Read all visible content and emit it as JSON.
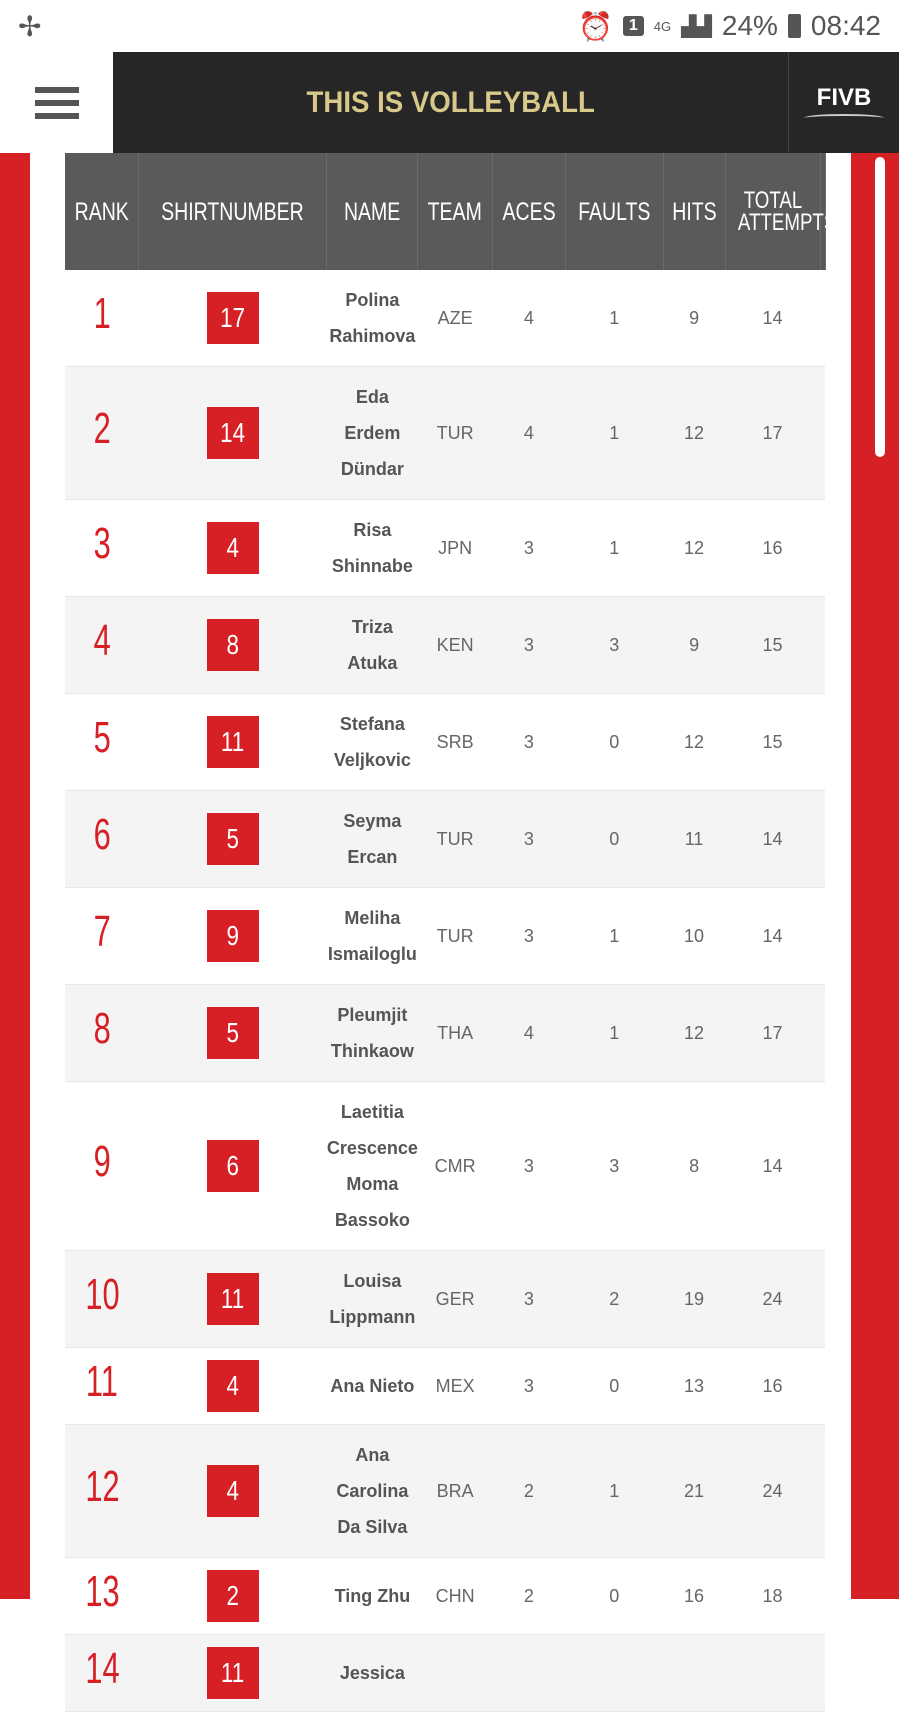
{
  "status_bar": {
    "sim": "1",
    "network": "4G",
    "battery": "24%",
    "time": "08:42"
  },
  "header": {
    "title": "THIS IS VOLLEYBALL",
    "logo": "FIVB"
  },
  "table": {
    "columns": [
      "RANK",
      "SHIRTNUMBER",
      "NAME",
      "TEAM",
      "ACES",
      "FAULTS",
      "HITS",
      "TOTAL ATTEMPTS"
    ],
    "rows": [
      {
        "rank": "1",
        "shirt": "17",
        "name": "Polina Rahimova",
        "team": "AZE",
        "aces": "4",
        "faults": "1",
        "hits": "9",
        "total": "14"
      },
      {
        "rank": "2",
        "shirt": "14",
        "name": "Eda Erdem Dündar",
        "team": "TUR",
        "aces": "4",
        "faults": "1",
        "hits": "12",
        "total": "17"
      },
      {
        "rank": "3",
        "shirt": "4",
        "name": "Risa Shinnabe",
        "team": "JPN",
        "aces": "3",
        "faults": "1",
        "hits": "12",
        "total": "16"
      },
      {
        "rank": "4",
        "shirt": "8",
        "name": "Triza Atuka",
        "team": "KEN",
        "aces": "3",
        "faults": "3",
        "hits": "9",
        "total": "15"
      },
      {
        "rank": "5",
        "shirt": "11",
        "name": "Stefana Veljkovic",
        "team": "SRB",
        "aces": "3",
        "faults": "0",
        "hits": "12",
        "total": "15"
      },
      {
        "rank": "6",
        "shirt": "5",
        "name": "Seyma Ercan",
        "team": "TUR",
        "aces": "3",
        "faults": "0",
        "hits": "11",
        "total": "14"
      },
      {
        "rank": "7",
        "shirt": "9",
        "name": "Meliha Ismailoglu",
        "team": "TUR",
        "aces": "3",
        "faults": "1",
        "hits": "10",
        "total": "14"
      },
      {
        "rank": "8",
        "shirt": "5",
        "name": "Pleumjit Thinkaow",
        "team": "THA",
        "aces": "4",
        "faults": "1",
        "hits": "12",
        "total": "17"
      },
      {
        "rank": "9",
        "shirt": "6",
        "name": "Laetitia Crescence Moma Bassoko",
        "team": "CMR",
        "aces": "3",
        "faults": "3",
        "hits": "8",
        "total": "14"
      },
      {
        "rank": "10",
        "shirt": "11",
        "name": "Louisa Lippmann",
        "team": "GER",
        "aces": "3",
        "faults": "2",
        "hits": "19",
        "total": "24"
      },
      {
        "rank": "11",
        "shirt": "4",
        "name": "Ana Nieto",
        "team": "MEX",
        "aces": "3",
        "faults": "0",
        "hits": "13",
        "total": "16"
      },
      {
        "rank": "12",
        "shirt": "4",
        "name": "Ana Carolina Da Silva",
        "team": "BRA",
        "aces": "2",
        "faults": "1",
        "hits": "21",
        "total": "24"
      },
      {
        "rank": "13",
        "shirt": "2",
        "name": "Ting Zhu",
        "team": "CHN",
        "aces": "2",
        "faults": "0",
        "hits": "16",
        "total": "18"
      },
      {
        "rank": "14",
        "shirt": "11",
        "name": "Jessica",
        "team": "",
        "aces": "",
        "faults": "",
        "hits": "",
        "total": ""
      }
    ]
  },
  "colors": {
    "accent": "#d71f26",
    "header_bg": "#262626",
    "table_header_bg": "#5a5a5a",
    "brand_gold": "#d8c98a"
  }
}
